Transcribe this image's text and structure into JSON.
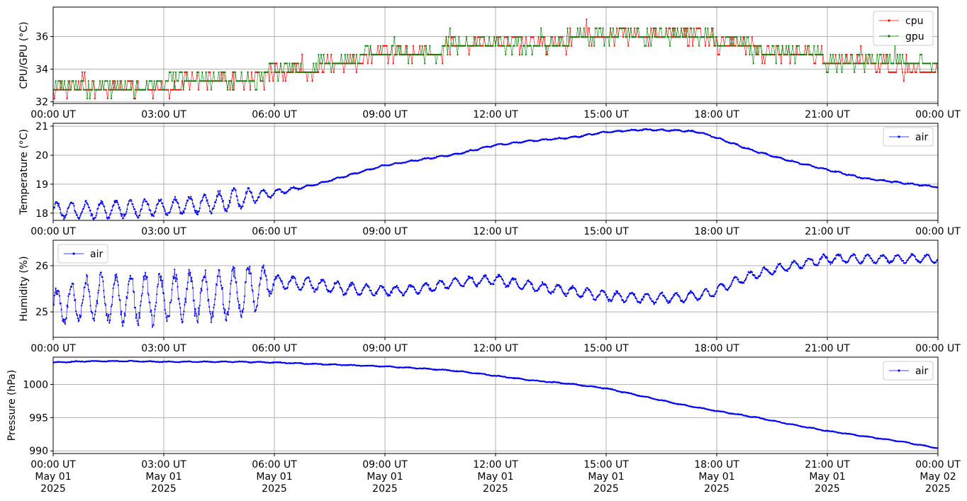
{
  "x_tick_labels": [
    "00:00 UT",
    "03:00 UT",
    "06:00 UT",
    "09:00 UT",
    "12:00 UT",
    "15:00 UT",
    "18:00 UT",
    "21:00 UT",
    "00:00 UT"
  ],
  "x_date_lines": [
    [
      "May 01",
      "2025"
    ],
    [
      "May 01",
      "2025"
    ],
    [
      "May 01",
      "2025"
    ],
    [
      "May 01",
      "2025"
    ],
    [
      "May 01",
      "2025"
    ],
    [
      "May 01",
      "2025"
    ],
    [
      "May 01",
      "2025"
    ],
    [
      "May 01",
      "2025"
    ],
    [
      "May 02",
      "2025"
    ]
  ],
  "chart_data": [
    {
      "type": "line",
      "ylabel": "CPU/GPU (°C)",
      "xlim": [
        "2025-05-01T00:00",
        "2025-05-02T00:00"
      ],
      "ylim": [
        31.9,
        37.8
      ],
      "yticks": [
        32,
        34,
        36
      ],
      "grid": true,
      "legend": "top-right",
      "series": [
        {
          "name": "cpu",
          "color": "#ff0000",
          "kind": "quantized",
          "x": [
            0,
            1.5,
            3,
            4.5,
            6,
            7,
            8,
            9,
            10,
            11,
            12,
            13,
            14,
            15,
            16,
            17,
            17.5,
            18,
            19,
            20,
            21,
            22,
            23,
            24
          ],
          "values": [
            32.8,
            32.7,
            32.9,
            33.2,
            33.6,
            33.9,
            34.4,
            34.8,
            34.9,
            35.3,
            35.4,
            35.6,
            35.7,
            35.8,
            35.9,
            35.9,
            36.3,
            35.6,
            35.2,
            34.8,
            34.6,
            34.4,
            33.9,
            33.8
          ]
        },
        {
          "name": "gpu",
          "color": "#008000",
          "kind": "quantized",
          "x": [
            0,
            1.5,
            3,
            4.5,
            6,
            7,
            8,
            9,
            10,
            11,
            12,
            13,
            14,
            15,
            16,
            17,
            17.5,
            18,
            19,
            20,
            21,
            22,
            23,
            24
          ],
          "values": [
            32.9,
            32.8,
            33.0,
            33.3,
            33.6,
            34.0,
            34.5,
            34.9,
            35.0,
            35.3,
            35.4,
            35.6,
            35.7,
            35.8,
            35.9,
            35.9,
            36.2,
            35.6,
            35.1,
            34.8,
            34.6,
            34.4,
            34.1,
            34.1
          ]
        }
      ]
    },
    {
      "type": "line",
      "ylabel": "Temperature (°C)",
      "xlim": [
        "2025-05-01T00:00",
        "2025-05-02T00:00"
      ],
      "ylim": [
        17.75,
        21.1
      ],
      "yticks": [
        18,
        19,
        20,
        21
      ],
      "grid": true,
      "legend": "top-right",
      "series": [
        {
          "name": "air",
          "color": "#0000ff",
          "kind": "smooth",
          "x": [
            0,
            1,
            2,
            3,
            4,
            5,
            6,
            7,
            8,
            9,
            10,
            11,
            12,
            13,
            14,
            15,
            16,
            17,
            17.5,
            18,
            19,
            20,
            21,
            22,
            23,
            24
          ],
          "values": [
            18.1,
            18.1,
            18.15,
            18.2,
            18.3,
            18.5,
            18.7,
            18.95,
            19.3,
            19.65,
            19.85,
            20.05,
            20.35,
            20.5,
            20.6,
            20.8,
            20.88,
            20.85,
            20.8,
            20.6,
            20.15,
            19.8,
            19.5,
            19.2,
            19.05,
            18.9
          ],
          "oscillation": {
            "amplitude": [
              0.25,
              0.28,
              0.28,
              0.25,
              0.3,
              0.35,
              0.1,
              0.02
            ],
            "amp_x": [
              0,
              1,
              2,
              3,
              4,
              5,
              6,
              7
            ],
            "period_hours": 0.4
          }
        }
      ]
    },
    {
      "type": "line",
      "ylabel": "Humidity (%)",
      "xlim": [
        "2025-05-01T00:00",
        "2025-05-02T00:00"
      ],
      "ylim": [
        24.45,
        26.55
      ],
      "yticks": [
        25,
        26
      ],
      "grid": true,
      "legend": "top-left",
      "series": [
        {
          "name": "air",
          "color": "#0000ff",
          "kind": "smooth",
          "x": [
            0,
            1,
            2,
            3,
            4,
            5,
            6,
            7,
            8,
            9,
            10,
            11,
            12,
            13,
            14,
            15,
            16,
            17,
            17.8,
            18.5,
            19,
            20,
            21,
            22,
            23,
            24
          ],
          "values": [
            25.1,
            25.3,
            25.3,
            25.3,
            25.35,
            25.4,
            25.65,
            25.6,
            25.5,
            25.45,
            25.5,
            25.65,
            25.7,
            25.55,
            25.45,
            25.35,
            25.3,
            25.3,
            25.4,
            25.65,
            25.8,
            26.0,
            26.15,
            26.15,
            26.15,
            26.15
          ],
          "oscillation": {
            "amplitude": [
              0.35,
              0.45,
              0.5,
              0.5,
              0.5,
              0.5,
              0.15,
              0.1,
              0.1,
              0.08
            ],
            "amp_x": [
              0,
              1,
              2,
              3,
              4,
              5.5,
              6,
              9,
              17.5,
              24
            ],
            "period_hours": 0.4
          }
        }
      ]
    },
    {
      "type": "line",
      "ylabel": "Pressure (hPa)",
      "xlim": [
        "2025-05-01T00:00",
        "2025-05-02T00:00"
      ],
      "ylim": [
        989.6,
        1004.1
      ],
      "yticks": [
        990,
        995,
        1000
      ],
      "grid": true,
      "legend": "top-right",
      "series": [
        {
          "name": "air",
          "color": "#0000ff",
          "kind": "smooth",
          "x": [
            0,
            1,
            2,
            3,
            4,
            5,
            6,
            7,
            8,
            9,
            10,
            11,
            12,
            13,
            14,
            15,
            16,
            17,
            18,
            19,
            20,
            21,
            22,
            23,
            24
          ],
          "values": [
            1003.3,
            1003.5,
            1003.5,
            1003.4,
            1003.4,
            1003.4,
            1003.3,
            1003.1,
            1002.9,
            1002.7,
            1002.4,
            1002.0,
            1001.3,
            1000.6,
            1000.1,
            999.4,
            998.2,
            997.0,
            996.0,
            995.1,
            994.0,
            993.0,
            992.2,
            991.4,
            990.4
          ],
          "oscillation": {
            "amplitude": [
              0.05,
              0.05
            ],
            "amp_x": [
              0,
              24
            ],
            "period_hours": 0.5
          }
        }
      ]
    }
  ]
}
